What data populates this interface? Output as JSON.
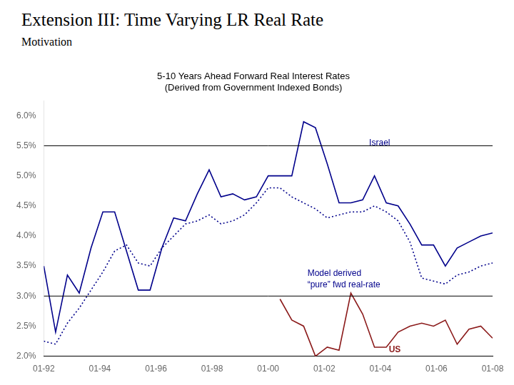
{
  "chart_data": {
    "type": "line",
    "slide_title": "Extension III: Time Varying LR Real Rate",
    "subtitle": "Motivation",
    "title": "5-10 Years Ahead Forward Real Interest Rates\n(Derived from Government Indexed Bonds)",
    "xlim": [
      0,
      16
    ],
    "xticks": [
      {
        "value": 0,
        "label": "01-92"
      },
      {
        "value": 2,
        "label": "01-94"
      },
      {
        "value": 4,
        "label": "01-96"
      },
      {
        "value": 6,
        "label": "01-98"
      },
      {
        "value": 8,
        "label": "01-00"
      },
      {
        "value": 10,
        "label": "01-02"
      },
      {
        "value": 12,
        "label": "01-04"
      },
      {
        "value": 14,
        "label": "01-06"
      },
      {
        "value": 16,
        "label": "01-08"
      }
    ],
    "ylim": [
      2.0,
      6.25
    ],
    "yticks": [
      {
        "value": 2.0,
        "label": "2.0%"
      },
      {
        "value": 2.5,
        "label": "2.5%"
      },
      {
        "value": 3.0,
        "label": "3.0%"
      },
      {
        "value": 3.5,
        "label": "3.5%"
      },
      {
        "value": 4.0,
        "label": "4.0%"
      },
      {
        "value": 4.5,
        "label": "4.5%"
      },
      {
        "value": 5.0,
        "label": "5.0%"
      },
      {
        "value": 5.5,
        "label": "5.5%"
      },
      {
        "value": 6.0,
        "label": "6.0%"
      }
    ],
    "grid": false,
    "series": [
      {
        "color": "#00008B",
        "line_style": "solid",
        "x": [
          0,
          0.42105263157894735,
          0.8421052631578947,
          1.263157894736842,
          1.6842105263157894,
          2.1052631578947367,
          2.526315789473684,
          2.9473684210526314,
          3.3684210526315788,
          3.789473684210526,
          4.2105263157894735,
          4.631578947368421,
          5.052631578947368,
          5.473684210526316,
          5.894736842105263,
          6.315789473684211,
          6.7368421052631575,
          7.157894736842105,
          7.578947368421052,
          8,
          8.421052631578947,
          8.842105263157894,
          9.263157894736842,
          9.68421052631579,
          10.105263157894736,
          10.526315789473685,
          10.947368421052632,
          11.368421052631579,
          11.789473684210526,
          12.210526315789474,
          12.631578947368421,
          13.052631578947368,
          13.473684210526315,
          13.894736842105264,
          14.31578947368421,
          14.736842105263158,
          15.157894736842104,
          15.578947368421053,
          16
        ],
        "values": [
          3.5,
          2.4,
          3.35,
          3.05,
          3.8,
          4.4,
          4.4,
          3.75,
          3.1,
          3.1,
          3.8,
          4.3,
          4.25,
          4.7,
          5.1,
          4.65,
          4.7,
          4.6,
          4.65,
          5.0,
          5.0,
          5.0,
          5.9,
          5.8,
          5.2,
          4.55,
          4.55,
          4.6,
          5.0,
          4.55,
          4.5,
          4.2,
          3.85,
          3.85,
          3.5,
          3.8,
          3.9,
          4.0,
          4.05
        ]
      },
      {
        "color": "#00008B",
        "line_style": "dotted",
        "x": [
          0,
          0.42105263157894735,
          0.8421052631578947,
          1.263157894736842,
          1.6842105263157894,
          2.1052631578947367,
          2.526315789473684,
          2.9473684210526314,
          3.3684210526315788,
          3.789473684210526,
          4.2105263157894735,
          4.631578947368421,
          5.052631578947368,
          5.473684210526316,
          5.894736842105263,
          6.315789473684211,
          6.7368421052631575,
          7.157894736842105,
          7.578947368421052,
          8,
          8.421052631578947,
          8.842105263157894,
          9.263157894736842,
          9.68421052631579,
          10.105263157894736,
          10.526315789473685,
          10.947368421052632,
          11.368421052631579,
          11.789473684210526,
          12.210526315789474,
          12.631578947368421,
          13.052631578947368,
          13.473684210526315,
          13.894736842105264,
          14.31578947368421,
          14.736842105263158,
          15.157894736842104,
          15.578947368421053,
          16
        ],
        "values": [
          2.25,
          2.2,
          2.55,
          2.8,
          3.1,
          3.4,
          3.75,
          3.85,
          3.55,
          3.5,
          3.8,
          4.0,
          4.2,
          4.25,
          4.35,
          4.2,
          4.25,
          4.35,
          4.55,
          4.8,
          4.8,
          4.65,
          4.55,
          4.45,
          4.3,
          4.35,
          4.4,
          4.4,
          4.5,
          4.4,
          4.25,
          3.9,
          3.3,
          3.25,
          3.2,
          3.35,
          3.4,
          3.5,
          3.55
        ]
      },
      {
        "color": "#8B1A1A",
        "line_style": "solid",
        "x": [
          8.421052631578947,
          8.842105263157894,
          9.263157894736842,
          9.68421052631579,
          10.105263157894736,
          10.526315789473685,
          10.947368421052632,
          11.368421052631579,
          11.789473684210526,
          12.210526315789474,
          12.631578947368421,
          13.052631578947368,
          13.473684210526315,
          13.894736842105264,
          14.31578947368421,
          14.736842105263158,
          15.157894736842104,
          15.578947368421053,
          16
        ],
        "values": [
          2.95,
          2.6,
          2.5,
          2.0,
          2.15,
          2.1,
          3.05,
          2.7,
          2.15,
          2.15,
          2.4,
          2.5,
          2.55,
          2.5,
          2.6,
          2.2,
          2.45,
          2.5,
          2.3
        ]
      }
    ],
    "reference_lines": [
      3.0,
      5.5
    ],
    "annotations": [
      {
        "text": "Israel",
        "x": 11.6,
        "y": 5.55,
        "color": "#00008B"
      },
      {
        "text": "Model derived\n“pure” fwd real-rate",
        "x": 9.4,
        "y": 3.45,
        "color": "#00008B"
      },
      {
        "text": "US",
        "x": 12.3,
        "y": 2.1,
        "color": "#8B1A1A"
      }
    ]
  }
}
